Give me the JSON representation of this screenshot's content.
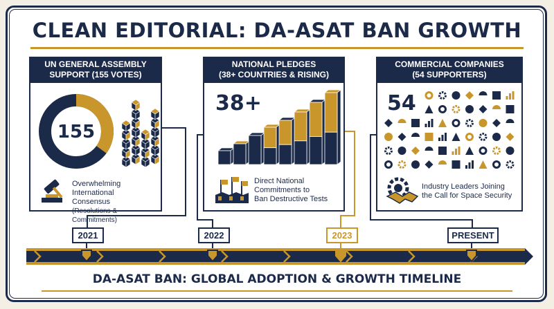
{
  "title": "CLEAN EDITORIAL: DA-ASAT BAN GROWTH",
  "colors": {
    "navy": "#1c2a4a",
    "gold": "#c9962b",
    "background": "#ffffff"
  },
  "panels": [
    {
      "heading_line1": "UN GENERAL ASSEMBLY",
      "heading_line2": "SUPPORT (155 VOTES)",
      "number": "155",
      "donut_fraction": 0.35,
      "caption_line1": "Overwhelming International",
      "caption_line2": "Consensus",
      "caption_line3": "(Resolutions & Commitments)",
      "icons": [
        "cube-stack-icon",
        "gavel-icon"
      ]
    },
    {
      "heading_line1": "NATIONAL PLEDGES",
      "heading_line2": "(38+ COUNTRIES & RISING)",
      "number": "38+",
      "caption_line1": "Direct National",
      "caption_line2": "Commitments to",
      "caption_line3": "Ban Destructive Tests",
      "icons": [
        "rising-bars-icon",
        "flags-icon"
      ]
    },
    {
      "heading_line1": "COMMERCIAL COMPANIES",
      "heading_line2": "(54 SUPPORTERS)",
      "number": "54",
      "caption_line1": "Industry Leaders Joining",
      "caption_line2": "the Call for Space Security",
      "icons": [
        "company-logo-grid-icon",
        "handshake-gear-icon"
      ]
    }
  ],
  "timeline": {
    "milestones": [
      "2021",
      "2022",
      "2023",
      "PRESENT"
    ],
    "highlighted": "2023",
    "subtitle": "DA-ASAT BAN: GLOBAL ADOPTION & GROWTH TIMELINE"
  }
}
